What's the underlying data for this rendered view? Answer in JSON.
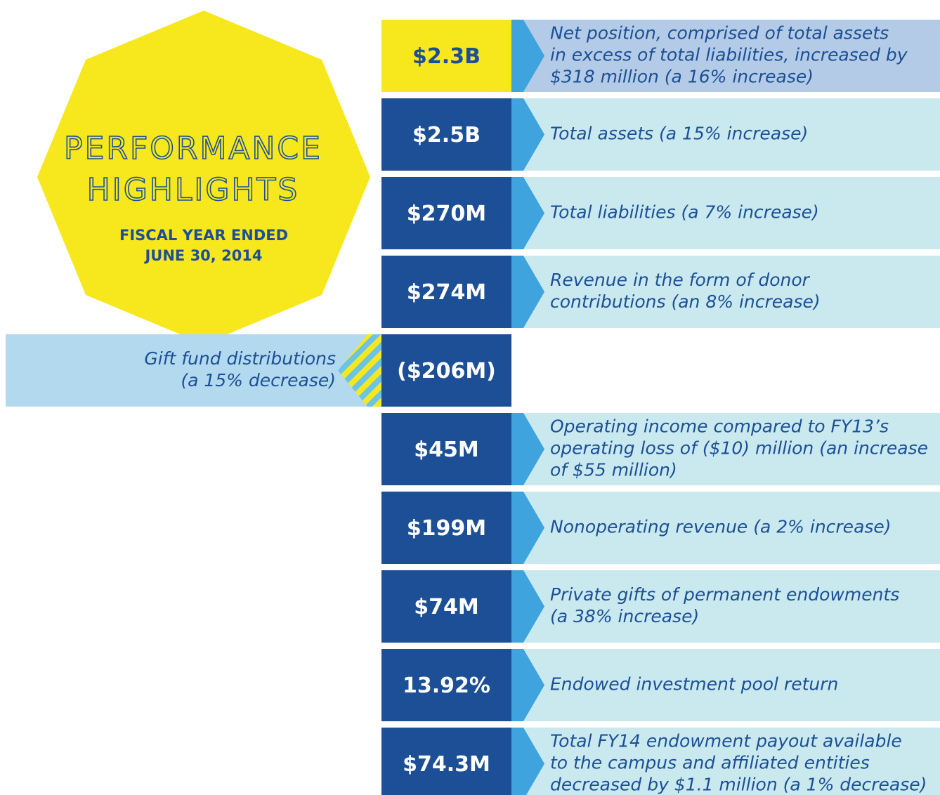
{
  "title": [
    "PERFORMANCE",
    "HIGHLIGHTS"
  ],
  "subtitle": [
    "FISCAL YEAR ENDED",
    "JUNE 30, 2014"
  ],
  "rows": [
    {
      "value": "$2.3B",
      "description": [
        "Net position, comprised of total assets",
        "in excess of total liabilities, increased by",
        "$318 million (a 16% increase)"
      ]
    },
    {
      "value": "$2.5B",
      "description": [
        "Total assets (a 15% increase)"
      ]
    },
    {
      "value": "$270M",
      "description": [
        "Total liabilities (a 7% increase)"
      ]
    },
    {
      "value": "$274M",
      "description": [
        "Revenue in the form of donor",
        "contributions (an 8% increase)"
      ]
    },
    {
      "value": "($206M)",
      "description": [
        "Gift fund distributions",
        "(a 15% decrease)"
      ]
    },
    {
      "value": "$45M",
      "description": [
        "Operating income compared to FY13’s",
        "operating loss of ($10) million (an increase",
        "of $55 million)"
      ]
    },
    {
      "value": "$199M",
      "description": [
        "Nonoperating revenue (a 2% increase)"
      ]
    },
    {
      "value": "$74M",
      "description": [
        "Private gifts of permanent endowments",
        "(a 38% increase)"
      ]
    },
    {
      "value": "13.92%",
      "description": [
        "Endowed investment pool return"
      ]
    },
    {
      "value": "$74.3M",
      "description": [
        "Total FY14 endowment payout available",
        "to the campus and affiliated entities",
        "decreased by $1.1 million (a 1% decrease)"
      ]
    }
  ]
}
